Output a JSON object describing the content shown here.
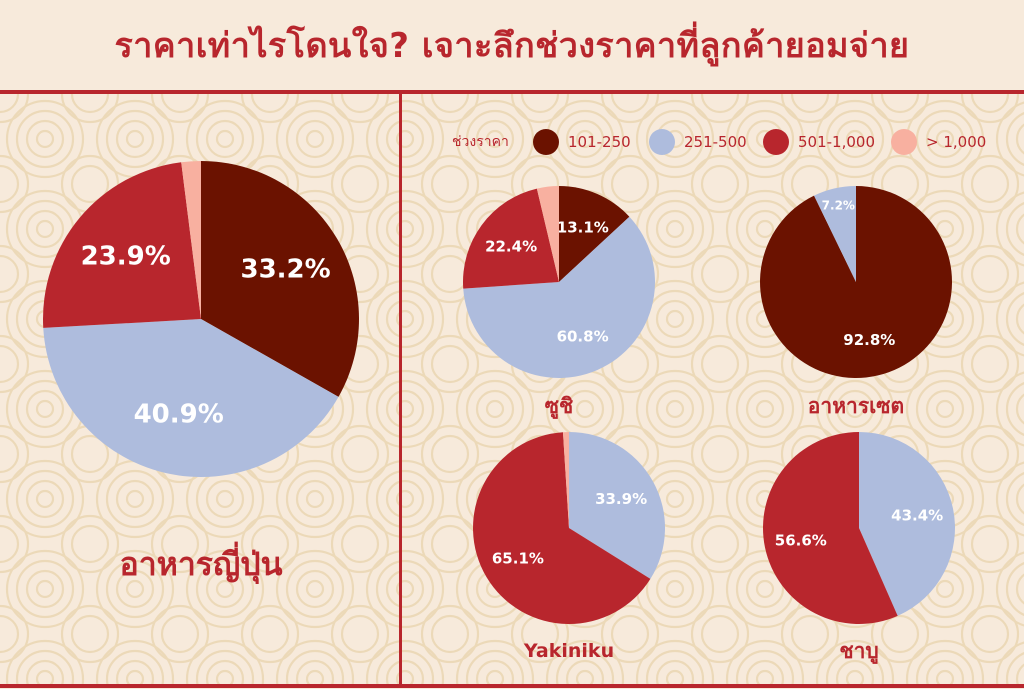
{
  "title": "ราคาเท่าไรโดนใจ? เจาะลึกช่วงราคาที่ลูกค้ายอมจ่าย",
  "legend": {
    "title": "ช่วงราคา",
    "items": [
      {
        "label": "101-250",
        "color": "#6b1200"
      },
      {
        "label": "251-500",
        "color": "#aebcdd"
      },
      {
        "label": "501-1,000",
        "color": "#b8262d"
      },
      {
        "label": "> 1,000",
        "color": "#f8b0a0"
      }
    ]
  },
  "chart_data": [
    {
      "type": "pie",
      "title": "อาหารญี่ปุ่น",
      "categories": [
        "101-250",
        "251-500",
        "501-1,000",
        "> 1,000"
      ],
      "values": [
        33.2,
        40.9,
        23.9,
        2.0
      ],
      "labels": [
        "33.2%",
        "40.9%",
        "23.9%",
        ""
      ]
    },
    {
      "type": "pie",
      "title": "ซูชิ",
      "categories": [
        "101-250",
        "251-500",
        "501-1,000",
        "> 1,000"
      ],
      "values": [
        13.1,
        60.8,
        22.4,
        3.7
      ],
      "labels": [
        "13.1%",
        "60.8%",
        "22.4%",
        ""
      ]
    },
    {
      "type": "pie",
      "title": "อาหารเซต",
      "categories": [
        "101-250",
        "251-500"
      ],
      "values": [
        92.8,
        7.2
      ],
      "labels": [
        "92.8%",
        "7.2%"
      ]
    },
    {
      "type": "pie",
      "title": "Yakiniku",
      "categories": [
        "251-500",
        "501-1,000",
        "> 1,000"
      ],
      "values": [
        33.9,
        65.1,
        1.0
      ],
      "labels": [
        "33.9%",
        "65.1%",
        ""
      ]
    },
    {
      "type": "pie",
      "title": "ชาบู",
      "categories": [
        "251-500",
        "501-1,000"
      ],
      "values": [
        43.4,
        56.6
      ],
      "labels": [
        "43.4%",
        "56.6%"
      ]
    }
  ]
}
